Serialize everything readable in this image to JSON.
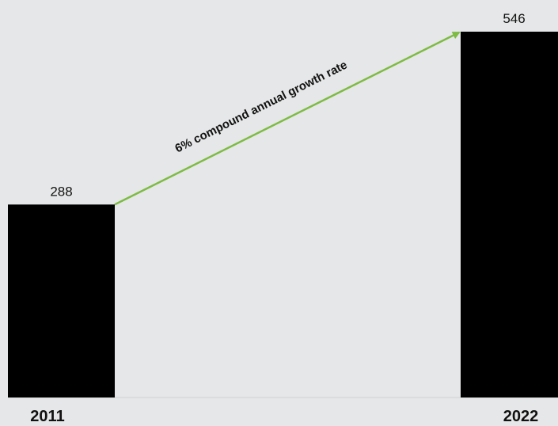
{
  "chart_data": {
    "type": "bar",
    "categories": [
      "2011",
      "2022"
    ],
    "values": [
      288,
      546
    ],
    "value_labels": [
      "288",
      "546"
    ],
    "annotation": "6% compound annual growth rate",
    "ylim": [
      0,
      546
    ],
    "grid": false,
    "colors": {
      "bar": "#000000",
      "arrow": "#7dbb42",
      "background": "#e6e7e8",
      "baseline": "#cfd0d2"
    }
  }
}
